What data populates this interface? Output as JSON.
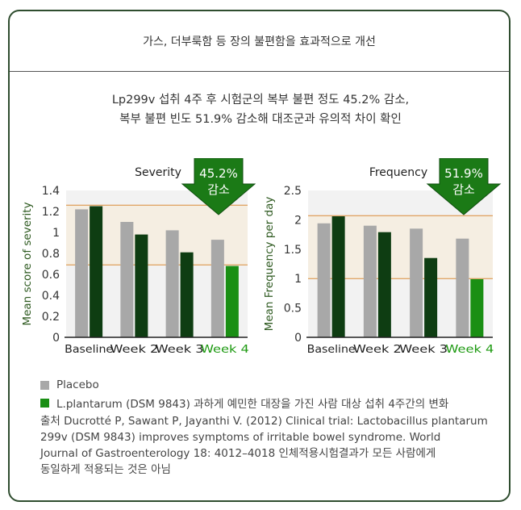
{
  "header": {
    "title": "가스, 더부룩함 등 장의 불편함을 효과적으로 개선"
  },
  "subtitle": {
    "line1": "Lp299v 섭취 4주 후 시험군의 복부 불편 정도 45.2% 감소,",
    "line2": "복부 불편 빈도 51.9% 감소해 대조군과 유의적 차이 확인"
  },
  "colors": {
    "placebo": "#a8a8a8",
    "treatment_dark": "#0e3d12",
    "treatment_bright": "#1a8f14",
    "axis_label": "#2e5a20",
    "week4_label": "#1e9a12",
    "band_fill": "#f5eee2",
    "band_line": "#d98c3a",
    "arrow": "#1b7a16",
    "border": "#2f4d2f"
  },
  "chart_data": [
    {
      "type": "bar",
      "title": "Severity",
      "ylabel": "Mean score of severity",
      "categories": [
        "Baseline",
        "Week 2",
        "Week 3",
        "Week 4"
      ],
      "highlight_category": "Week 4",
      "ylim": [
        0,
        1.4
      ],
      "yticks": [
        "0",
        "0.2",
        "0.4",
        "0.6",
        "0.8",
        "1",
        "1.2",
        "1.4"
      ],
      "series": [
        {
          "name": "Placebo",
          "values": [
            1.22,
            1.1,
            1.02,
            0.93
          ]
        },
        {
          "name": "L.plantarum (DSM 9843)",
          "values": [
            1.25,
            0.98,
            0.81,
            0.68
          ]
        }
      ],
      "band": [
        0.69,
        1.26
      ],
      "callout": {
        "line1": "45.2%",
        "line2": "감소"
      }
    },
    {
      "type": "bar",
      "title": "Frequency",
      "ylabel": "Mean Frequency per day",
      "categories": [
        "Baseline",
        "Week 2",
        "Week 3",
        "Week 4"
      ],
      "highlight_category": "Week 4",
      "ylim": [
        0,
        2.5
      ],
      "yticks": [
        "0",
        "0.5",
        "1",
        "1.5",
        "2",
        "2.5"
      ],
      "series": [
        {
          "name": "Placebo",
          "values": [
            1.94,
            1.9,
            1.85,
            1.68
          ]
        },
        {
          "name": "L.plantarum (DSM 9843)",
          "values": [
            2.06,
            1.79,
            1.35,
            0.99
          ]
        }
      ],
      "band": [
        1.0,
        2.07
      ],
      "callout": {
        "line1": "51.9%",
        "line2": "감소"
      }
    }
  ],
  "legend": {
    "placebo": "Placebo",
    "treatment": "L.plantarum (DSM 9843) 과하게 예민한 대장을 가진 사람 대상 섭취 4주간의 변화"
  },
  "source": {
    "line1": "출처 Ducrotté P, Sawant P, Jayanthi V. (2012) Clinical trial: Lactobacillus plantarum",
    "line2": "299v (DSM 9843) improves symptoms of irritable bowel syndrome. World",
    "line3": "Journal of Gastroenterology 18: 4012–4018 인체적용시험결과가 모든 사람에게",
    "line4": "동일하게 적용되는 것은 아님"
  }
}
